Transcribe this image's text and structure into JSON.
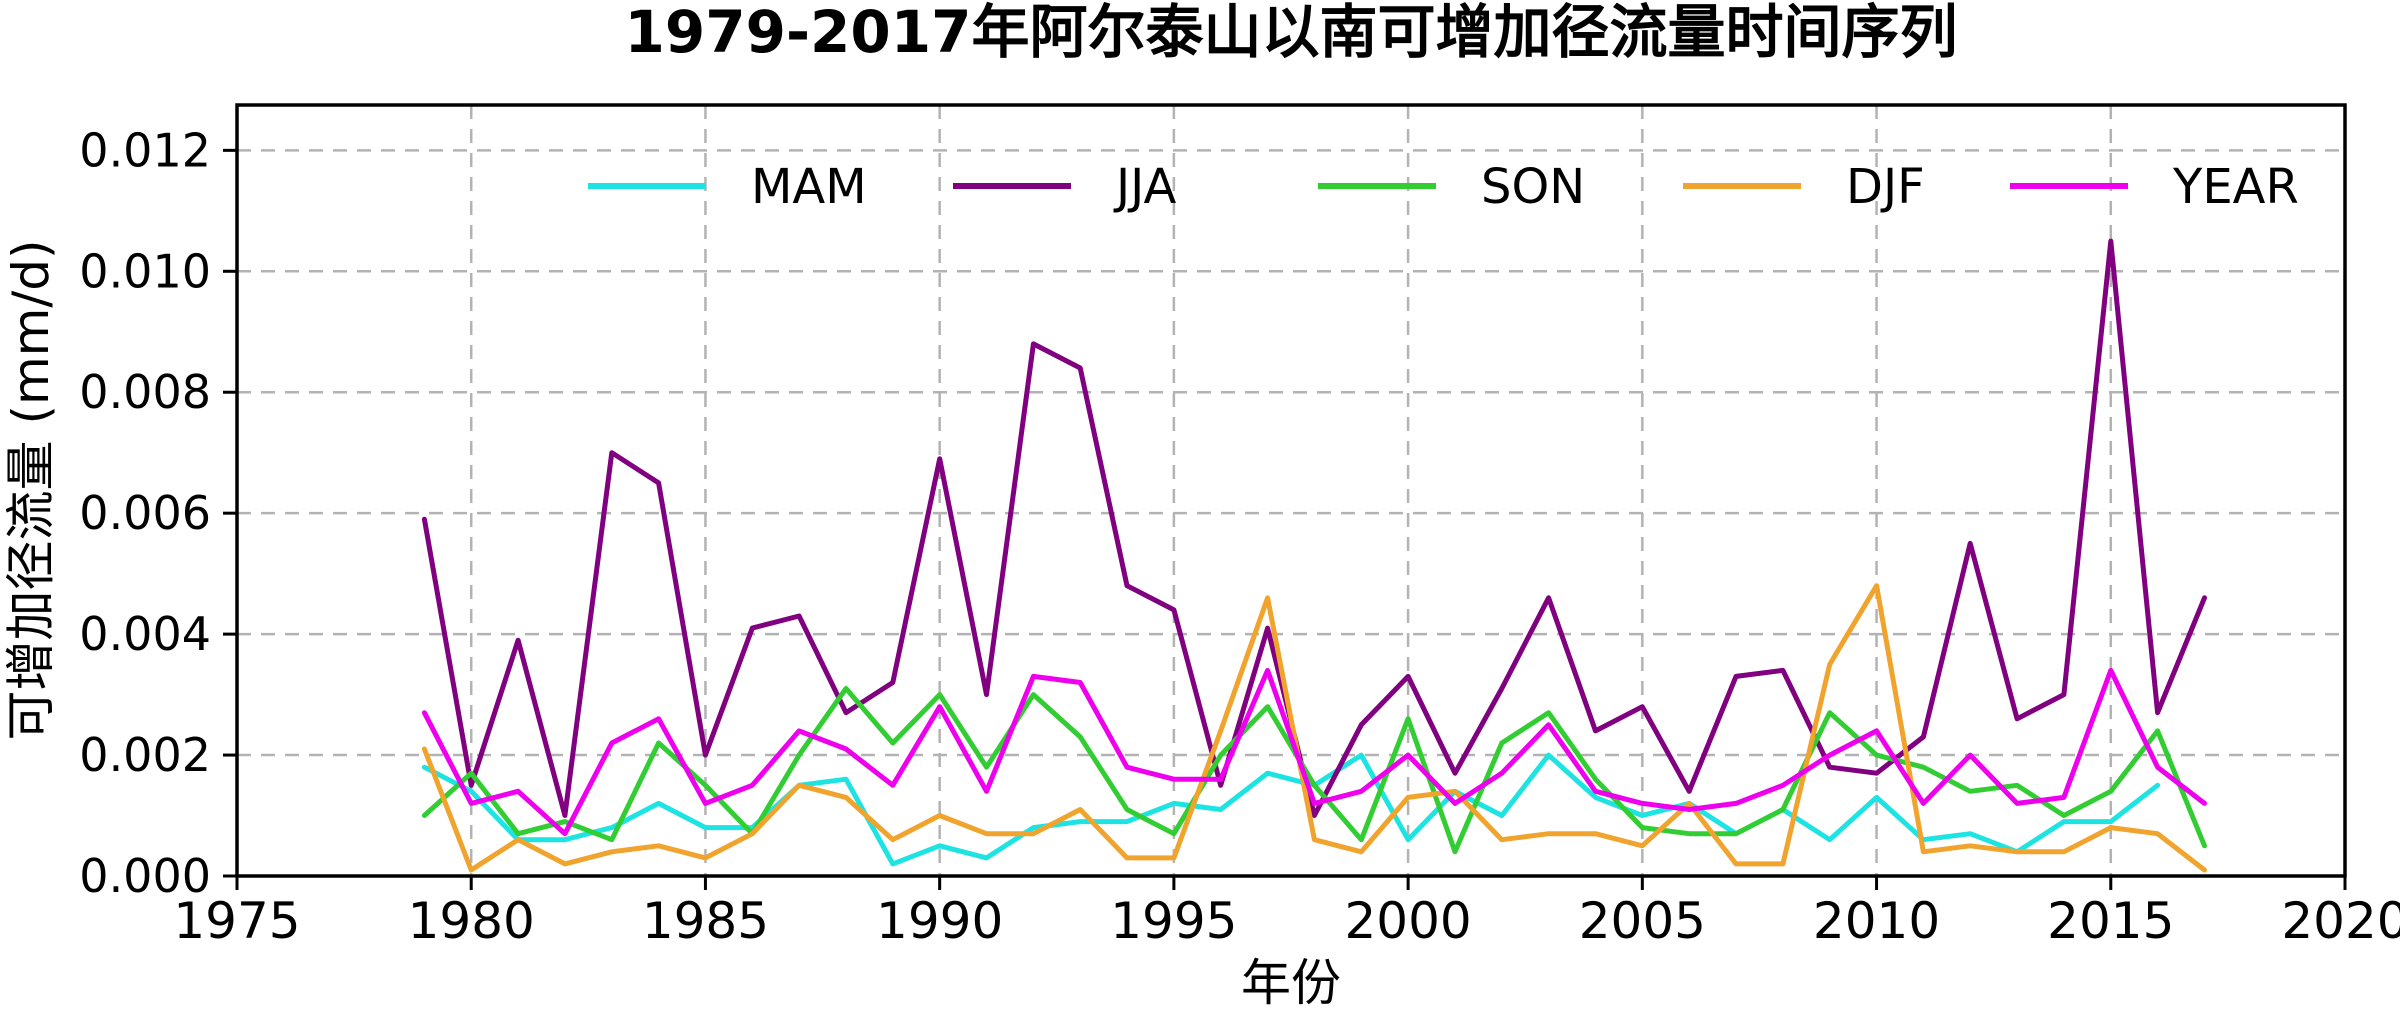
{
  "title": "1979-2017年阿尔泰山以南可增加径流量时间序列",
  "axes": {
    "x_label": "年份",
    "y_label": "可增加径流量 (mm/d)"
  },
  "colors": {
    "background": "#ffffff",
    "spine": "#000000",
    "grid": "#b3b3b3",
    "mam": "#1de3e3",
    "jja": "#800080",
    "son": "#32cd32",
    "djf": "#f0a42e",
    "year": "#ee00ee"
  },
  "chart_data": {
    "type": "line",
    "title": "1979-2017年阿尔泰山以南可增加径流量时间序列",
    "xlabel": "年份",
    "ylabel": "可增加径流量 (mm/d)",
    "grid": true,
    "legend_position": "top-inside-row",
    "xlim": [
      1975,
      2020
    ],
    "ylim": [
      0,
      0.01275
    ],
    "xticks": [
      1975,
      1980,
      1985,
      1990,
      1995,
      2000,
      2005,
      2010,
      2015,
      2020
    ],
    "xtick_labels": [
      "1975",
      "1980",
      "1985",
      "1990",
      "1995",
      "2000",
      "2005",
      "2010",
      "2015",
      "2020"
    ],
    "yticks": [
      0,
      0.002,
      0.004,
      0.006,
      0.008,
      0.01,
      0.012
    ],
    "ytick_labels": [
      "0.000",
      "0.002",
      "0.004",
      "0.006",
      "0.008",
      "0.010",
      "0.012"
    ],
    "x": [
      1979,
      1980,
      1981,
      1982,
      1983,
      1984,
      1985,
      1986,
      1987,
      1988,
      1989,
      1990,
      1991,
      1992,
      1993,
      1994,
      1995,
      1996,
      1997,
      1998,
      1999,
      2000,
      2001,
      2002,
      2003,
      2004,
      2005,
      2006,
      2007,
      2008,
      2009,
      2010,
      2011,
      2012,
      2013,
      2014,
      2015,
      2016,
      2017
    ],
    "series": [
      {
        "name": "MAM",
        "color": "#1de3e3",
        "values": [
          0.0018,
          0.0014,
          0.0006,
          0.0006,
          0.0008,
          0.0012,
          0.0008,
          0.0008,
          0.0015,
          0.0016,
          0.0002,
          0.0005,
          0.0003,
          0.0008,
          0.0009,
          0.0009,
          0.0012,
          0.0011,
          0.0017,
          0.0015,
          0.002,
          0.0006,
          0.0014,
          0.001,
          0.002,
          0.0013,
          0.001,
          0.0012,
          0.0007,
          0.0011,
          0.0006,
          0.0013,
          0.0006,
          0.0007,
          0.0004,
          0.0009,
          0.0009,
          0.0015,
          null
        ]
      },
      {
        "name": "JJA",
        "color": "#800080",
        "values": [
          0.0059,
          0.0015,
          0.0039,
          0.001,
          0.007,
          0.0065,
          0.002,
          0.0041,
          0.0043,
          0.0027,
          0.0032,
          0.0069,
          0.003,
          0.0088,
          0.0084,
          0.0048,
          0.0044,
          0.0015,
          0.0041,
          0.001,
          0.0025,
          0.0033,
          0.0017,
          0.0031,
          0.0046,
          0.0024,
          0.0028,
          0.0014,
          0.0033,
          0.0034,
          0.0018,
          0.0017,
          0.0023,
          0.0055,
          0.0026,
          0.003,
          0.0105,
          0.0027,
          0.0046
        ]
      },
      {
        "name": "SON",
        "color": "#32cd32",
        "values": [
          0.001,
          0.0017,
          0.0007,
          0.0009,
          0.0006,
          0.0022,
          0.0015,
          0.0007,
          0.002,
          0.0031,
          0.0022,
          0.003,
          0.0018,
          0.003,
          0.0023,
          0.0011,
          0.0007,
          0.002,
          0.0028,
          0.0015,
          0.0006,
          0.0026,
          0.0004,
          0.0022,
          0.0027,
          0.0016,
          0.0008,
          0.0007,
          0.0007,
          0.0011,
          0.0027,
          0.002,
          0.0018,
          0.0014,
          0.0015,
          0.001,
          0.0014,
          0.0024,
          0.0005
        ]
      },
      {
        "name": "DJF",
        "color": "#f0a42e",
        "values": [
          0.0021,
          0.0001,
          0.0006,
          0.0002,
          0.0004,
          0.0005,
          0.0003,
          0.0007,
          0.0015,
          0.0013,
          0.0006,
          0.001,
          0.0007,
          0.0007,
          0.0011,
          0.0003,
          0.0003,
          0.0024,
          0.0046,
          0.0006,
          0.0004,
          0.0013,
          0.0014,
          0.0006,
          0.0007,
          0.0007,
          0.0005,
          0.0012,
          0.0002,
          0.0002,
          0.0035,
          0.0048,
          0.0004,
          0.0005,
          0.0004,
          0.0004,
          0.0008,
          0.0007,
          0.0001
        ]
      },
      {
        "name": "YEAR",
        "color": "#ee00ee",
        "values": [
          0.0027,
          0.0012,
          0.0014,
          0.0007,
          0.0022,
          0.0026,
          0.0012,
          0.0015,
          0.0024,
          0.0021,
          0.0015,
          0.0028,
          0.0014,
          0.0033,
          0.0032,
          0.0018,
          0.0016,
          0.0016,
          0.0034,
          0.0012,
          0.0014,
          0.002,
          0.0012,
          0.0017,
          0.0025,
          0.0014,
          0.0012,
          0.0011,
          0.0012,
          0.0015,
          0.002,
          0.0024,
          0.0012,
          0.002,
          0.0012,
          0.0013,
          0.0034,
          0.0018,
          0.0012
        ]
      }
    ]
  }
}
